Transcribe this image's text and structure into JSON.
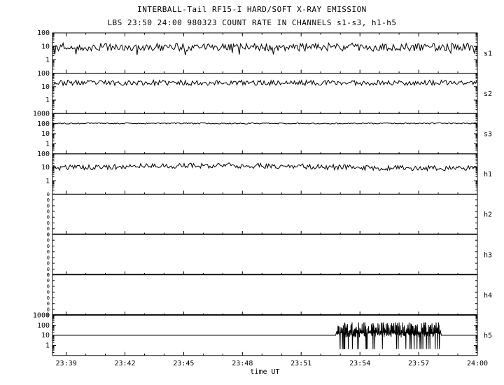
{
  "chart_data": {
    "type": "line",
    "title": "INTERBALL-Tail RF15-I HARD/SOFT X-RAY EMISSION",
    "subtitle": "LBS 23:50 24:00 980323  COUNT RATE IN CHANNELS s1-s3, h1-h5",
    "xlabel": "time UT",
    "ylabel": "COUNT RATE",
    "line_color": "#000000",
    "background_color": "#ffffff",
    "x_axis": {
      "min_minutes": 1418.3,
      "max_minutes": 1440,
      "minor_tick_every_minutes": 1,
      "major_ticks": [
        {
          "label": "23:39",
          "minutes": 1419
        },
        {
          "label": "23:42",
          "minutes": 1422
        },
        {
          "label": "23:45",
          "minutes": 1425
        },
        {
          "label": "23:48",
          "minutes": 1428
        },
        {
          "label": "23:51",
          "minutes": 1431
        },
        {
          "label": "23:54",
          "minutes": 1434
        },
        {
          "label": "23:57",
          "minutes": 1437
        },
        {
          "label": "24:00",
          "minutes": 1440
        }
      ]
    },
    "panels": [
      {
        "id": "s1",
        "label": "s1",
        "scale": "log",
        "yticks": [
          1,
          10,
          100
        ],
        "log_range": [
          -1,
          2
        ],
        "mean_level": 9,
        "noise_decades": 0.3,
        "seed": 11,
        "description": "noisy count rate fluctuating around ~9 counts"
      },
      {
        "id": "s2",
        "label": "s2",
        "scale": "log",
        "yticks": [
          1,
          10,
          100
        ],
        "log_range": [
          -1,
          2
        ],
        "mean_level": 20,
        "noise_decades": 0.2,
        "seed": 22,
        "description": "noisy count rate fluctuating around ~20 counts"
      },
      {
        "id": "s3",
        "label": "s3",
        "scale": "log",
        "yticks": [
          1,
          10,
          100,
          1000
        ],
        "log_range": [
          -1,
          3
        ],
        "mean_level": 110,
        "noise_decades": 0.06,
        "seed": 33,
        "description": "nearly flat count rate around ~110 counts"
      },
      {
        "id": "h1",
        "label": "h1",
        "scale": "log",
        "yticks": [
          1,
          10,
          100
        ],
        "log_range": [
          -1,
          2
        ],
        "mean_level": 11,
        "noise_decades": 0.2,
        "slow_wave_decades": 0.1,
        "seed": 44,
        "description": "noisy count rate around ~11 counts with slow undulation"
      },
      {
        "id": "h2",
        "label": "h2",
        "scale": "linear",
        "yticks": [
          "0",
          "0",
          "0",
          "0",
          "0",
          "0",
          "0",
          "0"
        ],
        "mean_level": 0,
        "seed": 0,
        "description": "zero count rate, flat at bottom"
      },
      {
        "id": "h3",
        "label": "h3",
        "scale": "linear",
        "yticks": [
          "0",
          "0",
          "0",
          "0",
          "0",
          "0",
          "0",
          "0"
        ],
        "mean_level": 0,
        "seed": 0,
        "description": "zero count rate, flat at bottom"
      },
      {
        "id": "h4",
        "label": "h4",
        "scale": "linear",
        "yticks": [
          "0",
          "0",
          "0",
          "0",
          "0",
          "0",
          "0",
          "0"
        ],
        "mean_level": 0,
        "seed": 0,
        "description": "zero count rate, flat at bottom"
      },
      {
        "id": "h5",
        "label": "h5",
        "scale": "log",
        "yticks": [
          1,
          10,
          100,
          1000
        ],
        "log_range": [
          -1,
          3
        ],
        "mean_level": 10,
        "noise_decades": 0,
        "seed": 77,
        "burst": {
          "start_minutes": 1432.8,
          "end_minutes": 1438.1,
          "min_value": 0.4,
          "max_value": 200
        },
        "description": "flat line at 10 counts with dense burst of spikes between 23:53 and 23:58"
      }
    ]
  }
}
